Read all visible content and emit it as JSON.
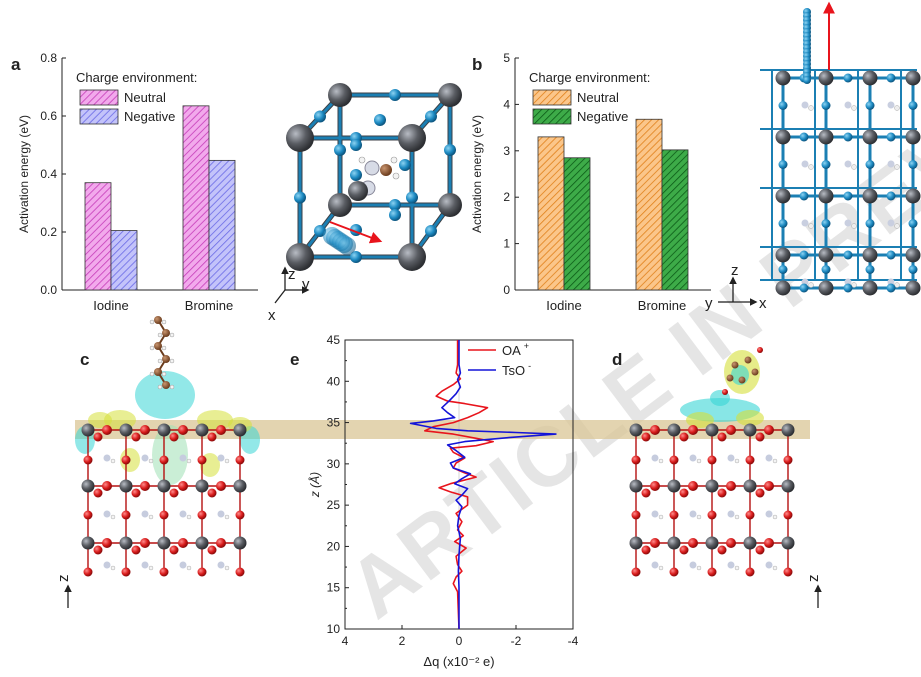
{
  "panels": {
    "a": "a",
    "b": "b",
    "c": "c",
    "d": "d",
    "e": "e"
  },
  "watermark": "ARTICLE IN PREVIEW",
  "colors": {
    "neutral_a": "#e75ad8",
    "negative_a": "#8f8ff5",
    "neutral_b": "#f7a13a",
    "negative_b": "#1e8f2e",
    "oa": "#e8141c",
    "tso": "#1414d8",
    "highlight_band": "#d9c596"
  },
  "axes_labels": {
    "a_z": "z",
    "a_y": "y",
    "a_x": "x",
    "b_z": "z",
    "b_y": "y",
    "b_x": "x",
    "c_z": "z",
    "d_z": "z"
  },
  "chart_data": [
    {
      "id": "a",
      "type": "bar",
      "categories": [
        "Iodine",
        "Bromine"
      ],
      "series": [
        {
          "name": "Neutral",
          "values": [
            0.37,
            0.635
          ]
        },
        {
          "name": "Negative",
          "values": [
            0.205,
            0.447
          ]
        }
      ],
      "ylabel": "Activation energy (eV)",
      "ylim": [
        0,
        0.8
      ],
      "yticks": [
        "0.0",
        "0.2",
        "0.4",
        "0.6",
        "0.8"
      ],
      "legend_title": "Charge environment:",
      "legend_position": "top-left"
    },
    {
      "id": "b",
      "type": "bar",
      "categories": [
        "Iodine",
        "Bromine"
      ],
      "series": [
        {
          "name": "Neutral",
          "values": [
            3.3,
            3.68
          ]
        },
        {
          "name": "Negative",
          "values": [
            2.85,
            3.02
          ]
        }
      ],
      "ylabel": "Activation energy (eV)",
      "ylim": [
        0,
        5
      ],
      "yticks": [
        "0",
        "1",
        "2",
        "3",
        "4",
        "5"
      ],
      "legend_title": "Charge environment:",
      "legend_position": "top-left"
    },
    {
      "id": "e",
      "type": "line",
      "xlabel": "Δq (x10⁻² e)",
      "ylabel": "z (Å)",
      "xlim": [
        4,
        -4
      ],
      "ylim": [
        10,
        45
      ],
      "xticks": [
        "4",
        "2",
        "0",
        "-2",
        "-4"
      ],
      "yticks": [
        "10",
        "15",
        "20",
        "25",
        "30",
        "35",
        "40",
        "45"
      ],
      "legend_position": "top-right",
      "series": [
        {
          "name": "OA +",
          "points": [
            [
              0.05,
              45
            ],
            [
              0.05,
              42
            ],
            [
              0.1,
              41
            ],
            [
              -0.05,
              40.3
            ],
            [
              0.2,
              39.6
            ],
            [
              0.6,
              38.8
            ],
            [
              0.8,
              38.2
            ],
            [
              0.4,
              37.6
            ],
            [
              -0.2,
              37.3
            ],
            [
              -1.0,
              36.8
            ],
            [
              -0.7,
              36.2
            ],
            [
              -0.3,
              35.6
            ],
            [
              0.2,
              35.0
            ],
            [
              0.9,
              34.5
            ],
            [
              1.2,
              34.0
            ],
            [
              0.2,
              33.6
            ],
            [
              -0.6,
              33.1
            ],
            [
              -1.2,
              32.7
            ],
            [
              -0.6,
              32.2
            ],
            [
              0.3,
              31.9
            ],
            [
              0.2,
              31.4
            ],
            [
              -0.2,
              30.7
            ],
            [
              0.1,
              30.1
            ],
            [
              0.2,
              29.5
            ],
            [
              -0.2,
              28.9
            ],
            [
              -0.6,
              28.4
            ],
            [
              0.3,
              27.6
            ],
            [
              0.7,
              27.1
            ],
            [
              0.3,
              26.6
            ],
            [
              -0.3,
              26.0
            ],
            [
              -0.3,
              25.0
            ],
            [
              0.1,
              24.0
            ],
            [
              -0.1,
              23.0
            ],
            [
              0.05,
              22.0
            ],
            [
              -0.15,
              21.3
            ],
            [
              0.15,
              20.6
            ],
            [
              -0.25,
              19.8
            ],
            [
              0.1,
              18.8
            ],
            [
              0.05,
              17.8
            ],
            [
              -0.1,
              17.0
            ],
            [
              0.1,
              16.3
            ],
            [
              0.2,
              15.5
            ],
            [
              0.05,
              14.5
            ],
            [
              0.0,
              10
            ]
          ]
        },
        {
          "name": "TsO -",
          "points": [
            [
              0.0,
              45
            ],
            [
              0.0,
              42
            ],
            [
              -0.05,
              41
            ],
            [
              0.05,
              40.2
            ],
            [
              -0.05,
              39.3
            ],
            [
              0.1,
              38.5
            ],
            [
              0.35,
              37.6
            ],
            [
              0.6,
              36.8
            ],
            [
              0.4,
              36.2
            ],
            [
              0.15,
              35.6
            ],
            [
              0.9,
              35.2
            ],
            [
              1.7,
              34.9
            ],
            [
              0.8,
              34.3
            ],
            [
              -0.3,
              34.0
            ],
            [
              -2.0,
              33.8
            ],
            [
              -3.4,
              33.6
            ],
            [
              -1.8,
              33.2
            ],
            [
              -0.2,
              32.7
            ],
            [
              0.4,
              32.3
            ],
            [
              0.1,
              31.6
            ],
            [
              -0.2,
              30.8
            ],
            [
              0.3,
              30.1
            ],
            [
              0.2,
              29.5
            ],
            [
              -0.4,
              28.8
            ],
            [
              -0.1,
              28.2
            ],
            [
              0.15,
              27.6
            ],
            [
              -0.3,
              27.0
            ],
            [
              -0.1,
              26.2
            ],
            [
              0.1,
              25.6
            ],
            [
              -0.1,
              24.8
            ],
            [
              0.0,
              23.8
            ],
            [
              0.05,
              22.5
            ],
            [
              -0.05,
              21.0
            ],
            [
              0.0,
              19.0
            ],
            [
              0.02,
              17.0
            ],
            [
              0.0,
              15.0
            ],
            [
              0.0,
              10
            ]
          ]
        }
      ]
    }
  ]
}
